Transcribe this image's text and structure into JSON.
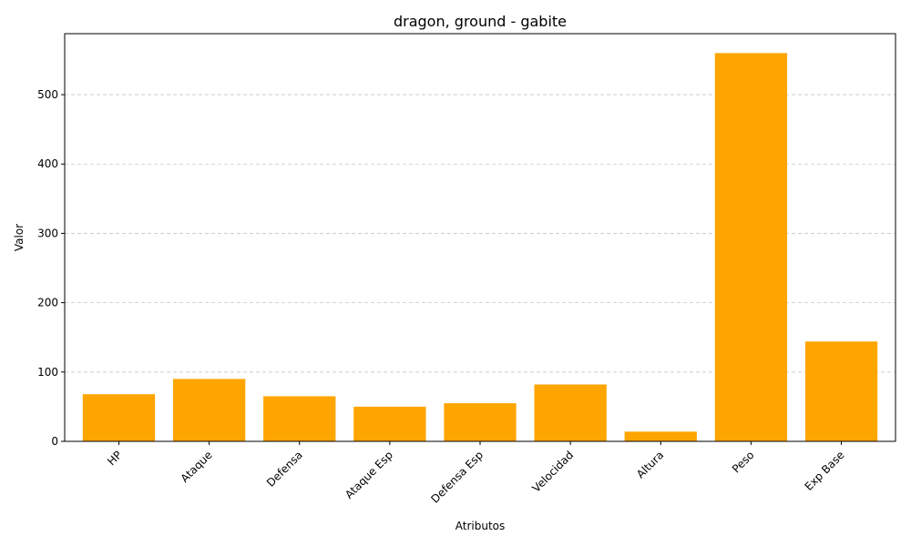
{
  "chart_data": {
    "type": "bar",
    "title": "dragon, ground - gabite",
    "xlabel": "Atributos",
    "ylabel": "Valor",
    "categories": [
      "HP",
      "Ataque",
      "Defensa",
      "Ataque Esp",
      "Defensa Esp",
      "Velocidad",
      "Altura",
      "Peso",
      "Exp Base"
    ],
    "values": [
      68,
      90,
      65,
      50,
      55,
      82,
      14,
      560,
      144
    ],
    "ylim": [
      0,
      588
    ],
    "yticks": [
      0,
      100,
      200,
      300,
      400,
      500
    ],
    "xtick_rotation": 45,
    "grid": "y-axis dashed",
    "bar_color": "#ffa500"
  }
}
